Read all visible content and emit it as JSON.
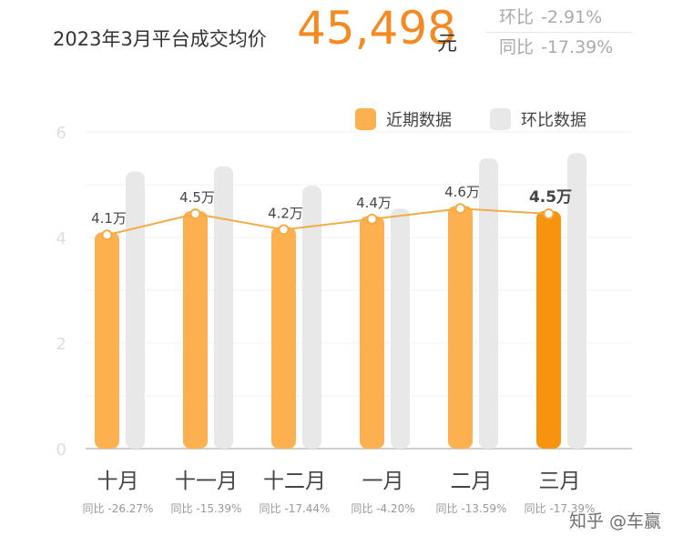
{
  "header": {
    "title": "2023年3月平台成交均价",
    "value": "45,498",
    "unit": "元",
    "mom_label": "环比",
    "mom_value": "-2.91%",
    "yoy_label": "同比",
    "yoy_value": "-17.39%"
  },
  "watermark": "知乎 @车赢",
  "colors": {
    "accent": "#f58a22",
    "recent_bar": "#fdb04f",
    "recent_bar_highlight": "#f7930e",
    "mom_bar": "#e8e8e8",
    "line": "#f2ac45",
    "grid": "#f0f0f0",
    "axis_text": "#dedede",
    "label_text": "#444444",
    "sub_text": "#999999"
  },
  "chart_data": {
    "type": "bar",
    "categories": [
      "十月",
      "十一月",
      "十二月",
      "一月",
      "二月",
      "三月"
    ],
    "series": [
      {
        "name": "近期数据",
        "values": [
          4.1,
          4.5,
          4.2,
          4.4,
          4.6,
          4.5
        ]
      },
      {
        "name": "环比数据",
        "values": [
          5.25,
          5.35,
          4.98,
          4.55,
          5.5,
          5.6
        ]
      }
    ],
    "line_values": [
      4.1,
      4.5,
      4.2,
      4.4,
      4.6,
      4.5
    ],
    "data_labels": [
      "4.1万",
      "4.5万",
      "4.2万",
      "4.4万",
      "4.6万",
      "4.5万"
    ],
    "yoy_labels": [
      "同比 -26.27%",
      "同比 -15.39%",
      "同比 -17.44%",
      "同比 -4.20%",
      "同比 -13.59%",
      "同比 -17.39%"
    ],
    "highlight_index": 5,
    "yticks": [
      "0",
      "2",
      "4",
      "6"
    ],
    "ylim": [
      0,
      6
    ],
    "grid": true,
    "legend_position": "top-right"
  }
}
